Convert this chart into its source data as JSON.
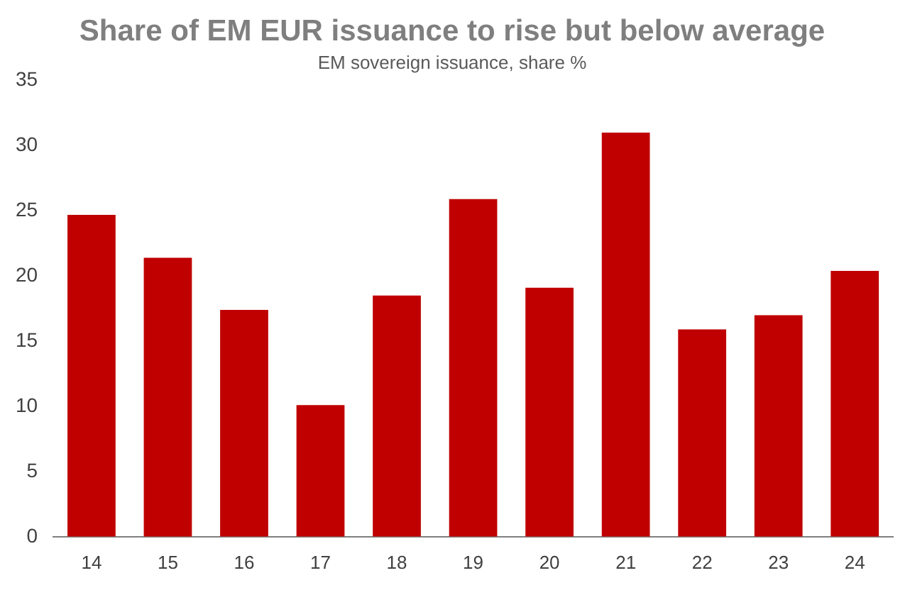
{
  "chart_data": {
    "type": "bar",
    "title": "Share of EM EUR issuance to rise but below average",
    "subtitle": "EM sovereign issuance, share %",
    "categories": [
      "14",
      "15",
      "16",
      "17",
      "18",
      "19",
      "20",
      "21",
      "22",
      "23",
      "24"
    ],
    "values": [
      24.7,
      21.4,
      17.4,
      10.1,
      18.5,
      25.9,
      19.1,
      31.0,
      15.9,
      17.0,
      20.4
    ],
    "color": "#c00000",
    "ylim": [
      0,
      35
    ],
    "yticks": [
      0,
      5,
      10,
      15,
      20,
      25,
      30,
      35
    ],
    "grid": false
  }
}
